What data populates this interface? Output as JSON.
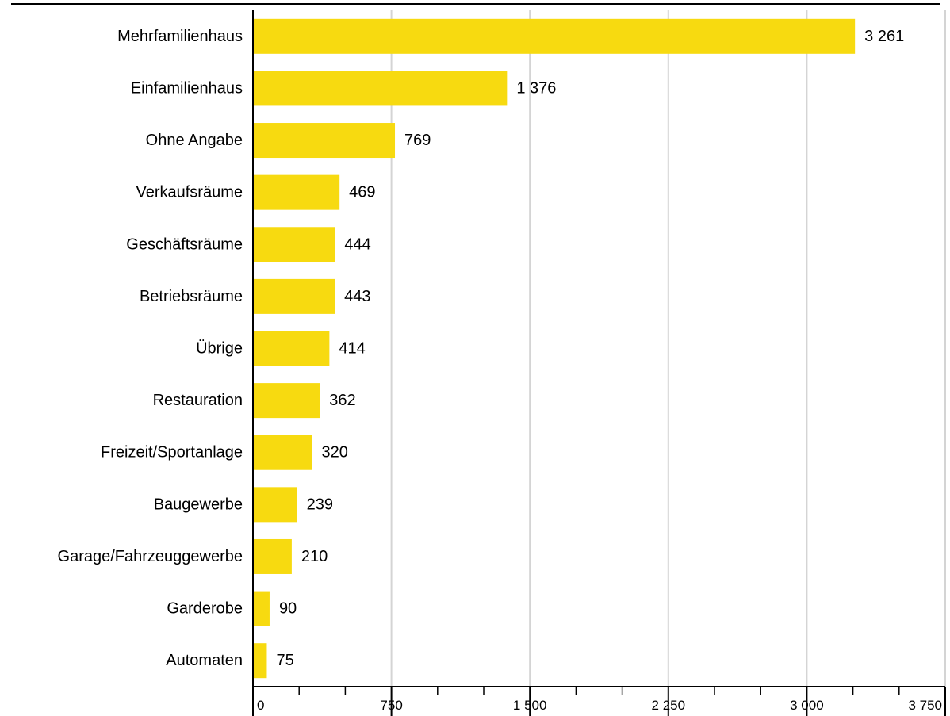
{
  "chart_data": {
    "type": "bar",
    "orientation": "horizontal",
    "categories": [
      "Mehrfamilienhaus",
      "Einfamilienhaus",
      "Ohne Angabe",
      "Verkaufsräume",
      "Geschäftsräume",
      "Betriebsräume",
      "Übrige",
      "Restauration",
      "Freizeit/Sportanlage",
      "Baugewerbe",
      "Garage/Fahrzeuggewerbe",
      "Garderobe",
      "Automaten"
    ],
    "values": [
      3261,
      1376,
      769,
      469,
      444,
      443,
      414,
      362,
      320,
      239,
      210,
      90,
      75
    ],
    "value_labels": [
      "3 261",
      "1 376",
      "769",
      "469",
      "444",
      "443",
      "414",
      "362",
      "320",
      "239",
      "210",
      "90",
      "75"
    ],
    "xlim": [
      0,
      3750
    ],
    "x_ticks": [
      0,
      750,
      1500,
      2250,
      3000,
      3750
    ],
    "x_tick_labels": [
      "0",
      "750",
      "1 500",
      "2 250",
      "3 000",
      "3 750"
    ],
    "x_minor_step": 250,
    "grid": true,
    "legend": "none",
    "title": "",
    "xlabel": "",
    "ylabel": "",
    "colors": {
      "bar": "#F7DA10",
      "grid": "#D4D4D4",
      "axis": "#000000"
    }
  }
}
